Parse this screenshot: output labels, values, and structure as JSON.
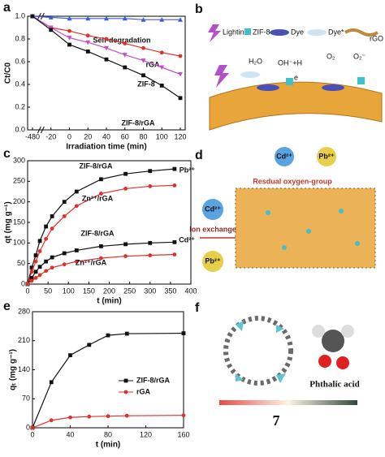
{
  "chart_data": [
    {
      "type": "line",
      "panel": "a",
      "xlabel": "Irradiation time (min)",
      "ylabel": "Ct/C0",
      "categories": [
        "-480",
        "-20",
        "0",
        "20",
        "40",
        "60",
        "80",
        "100",
        "120"
      ],
      "ylim": [
        0,
        1.0
      ],
      "yticks": [
        {
          "value": 0,
          "label": "0.0"
        },
        0.2,
        0.4,
        0.6,
        0.8,
        {
          "value": 1,
          "label": "1.0"
        }
      ],
      "series": [
        {
          "name": "Self-degradation",
          "color": "#3b5bd6",
          "marker": "triangle-up",
          "values": [
            1.0,
            0.99,
            0.98,
            0.98,
            0.98,
            0.98,
            0.97,
            0.97,
            0.97
          ]
        },
        {
          "name": "rGA",
          "color": "#e0302a",
          "marker": "circle",
          "values": [
            1.0,
            0.9,
            0.87,
            0.83,
            0.8,
            0.76,
            0.72,
            0.68,
            0.65
          ]
        },
        {
          "name": "ZIF-8",
          "color": "#c24fc4",
          "marker": "triangle-down",
          "values": [
            1.0,
            0.9,
            0.81,
            0.77,
            0.72,
            0.66,
            0.61,
            0.55,
            0.49
          ]
        },
        {
          "name": "ZIF-8/rGA",
          "color": "#111111",
          "marker": "square",
          "values": [
            1.0,
            0.88,
            0.75,
            0.69,
            0.62,
            0.55,
            0.48,
            0.39,
            0.28
          ]
        }
      ]
    },
    {
      "type": "line",
      "panel": "c",
      "xlabel": "t (min)",
      "ylabel": "qt (mg g⁻¹)",
      "x": [
        0,
        10,
        20,
        30,
        45,
        60,
        90,
        120,
        180,
        240,
        300,
        360
      ],
      "xlim": [
        0,
        400
      ],
      "xticks": [
        0,
        50,
        100,
        150,
        200,
        250,
        300,
        350,
        400
      ],
      "ylim": [
        0,
        300
      ],
      "yticks": [
        0,
        50,
        100,
        150,
        200,
        250,
        300
      ],
      "annotations": [
        "Pb²⁺",
        "Cd²⁺"
      ],
      "series": [
        {
          "name": "ZIF-8/rGA",
          "color": "#111111",
          "marker": "square",
          "values": [
            0,
            40,
            70,
            105,
            140,
            165,
            200,
            225,
            255,
            268,
            275,
            280
          ]
        },
        {
          "name": "Zn²⁺/rGA",
          "color": "#e0302a",
          "marker": "circle",
          "values": [
            0,
            30,
            55,
            80,
            110,
            135,
            165,
            190,
            220,
            232,
            238,
            240
          ]
        },
        {
          "name": "ZIF-8/rGA",
          "color": "#111111",
          "marker": "square",
          "values": [
            0,
            15,
            30,
            42,
            55,
            65,
            75,
            82,
            92,
            97,
            100,
            102
          ]
        },
        {
          "name": "Zn²⁺/rGA",
          "color": "#e0302a",
          "marker": "circle",
          "values": [
            0,
            8,
            15,
            22,
            32,
            40,
            48,
            55,
            63,
            68,
            70,
            72
          ]
        }
      ]
    },
    {
      "type": "line",
      "panel": "e",
      "xlabel": "t (min)",
      "ylabel": "qₜ (mg g⁻¹)",
      "x": [
        0,
        20,
        40,
        60,
        80,
        100,
        160
      ],
      "xlim": [
        0,
        160
      ],
      "xticks": [
        0,
        40,
        80,
        120,
        160
      ],
      "ylim": [
        0,
        280
      ],
      "yticks": [
        0,
        70,
        140,
        210,
        280
      ],
      "series": [
        {
          "name": "ZIF-8/rGA",
          "color": "#111111",
          "marker": "square",
          "values": [
            0,
            110,
            175,
            200,
            223,
            227,
            228
          ]
        },
        {
          "name": "rGA",
          "color": "#e0302a",
          "marker": "circle",
          "values": [
            0,
            18,
            25,
            27,
            28,
            29,
            30
          ]
        }
      ]
    }
  ],
  "panels": {
    "b": {
      "label": "b",
      "legend": [
        "Lightin",
        "ZIF-8",
        "Dye",
        "Dye*",
        "rGO"
      ],
      "texts": [
        "H₂O",
        "OH⁻+H",
        "e",
        "O₂",
        "O₂⁻"
      ]
    },
    "d": {
      "label": "d",
      "ions": [
        "Cd²⁺",
        "Pb²⁺"
      ],
      "group": "Resdual oxygen-group",
      "exchange": "Ion exchange",
      "side_ions": [
        "Cd²⁺",
        "Pb²⁺"
      ]
    },
    "f": {
      "label": "f",
      "molecule": "Phthalic acid",
      "scale": "7"
    }
  }
}
